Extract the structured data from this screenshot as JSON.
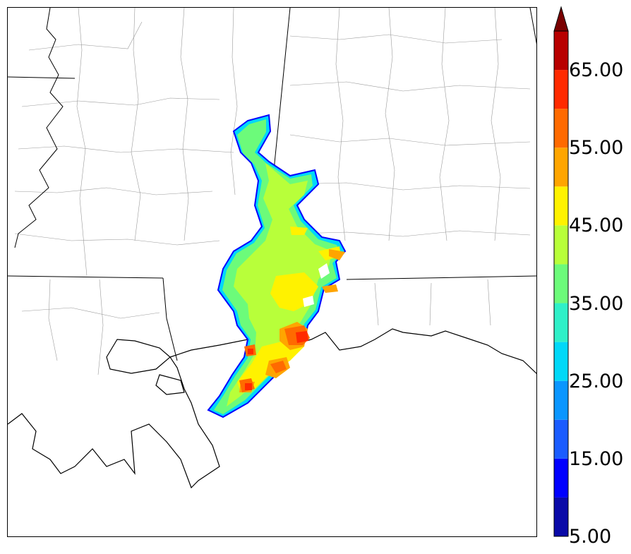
{
  "map": {
    "projection": "regional lat/lon",
    "region": "Gulf Coast (Louisiana, Mississippi, Alabama, Florida panhandle)",
    "reflectivity_field": "composite radar reflectivity"
  },
  "colorbar": {
    "ticks": [
      {
        "value": 5,
        "label": "5.00"
      },
      {
        "value": 15,
        "label": "15.00"
      },
      {
        "value": 25,
        "label": "25.00"
      },
      {
        "value": 35,
        "label": "35.00"
      },
      {
        "value": 45,
        "label": "45.00"
      },
      {
        "value": 55,
        "label": "55.00"
      },
      {
        "value": 65,
        "label": "65.00"
      }
    ],
    "levels": [
      5,
      10,
      15,
      20,
      25,
      30,
      35,
      40,
      45,
      50,
      55,
      60,
      65,
      70
    ],
    "colors": [
      "#0a0aa8",
      "#0000ff",
      "#1a5cff",
      "#0a96ff",
      "#00d8f8",
      "#2ff0c8",
      "#6cfb7a",
      "#b8ff3a",
      "#fff200",
      "#ffa500",
      "#ff6a00",
      "#ff2a00",
      "#b80000",
      "#7a0000"
    ],
    "extend": "max"
  }
}
